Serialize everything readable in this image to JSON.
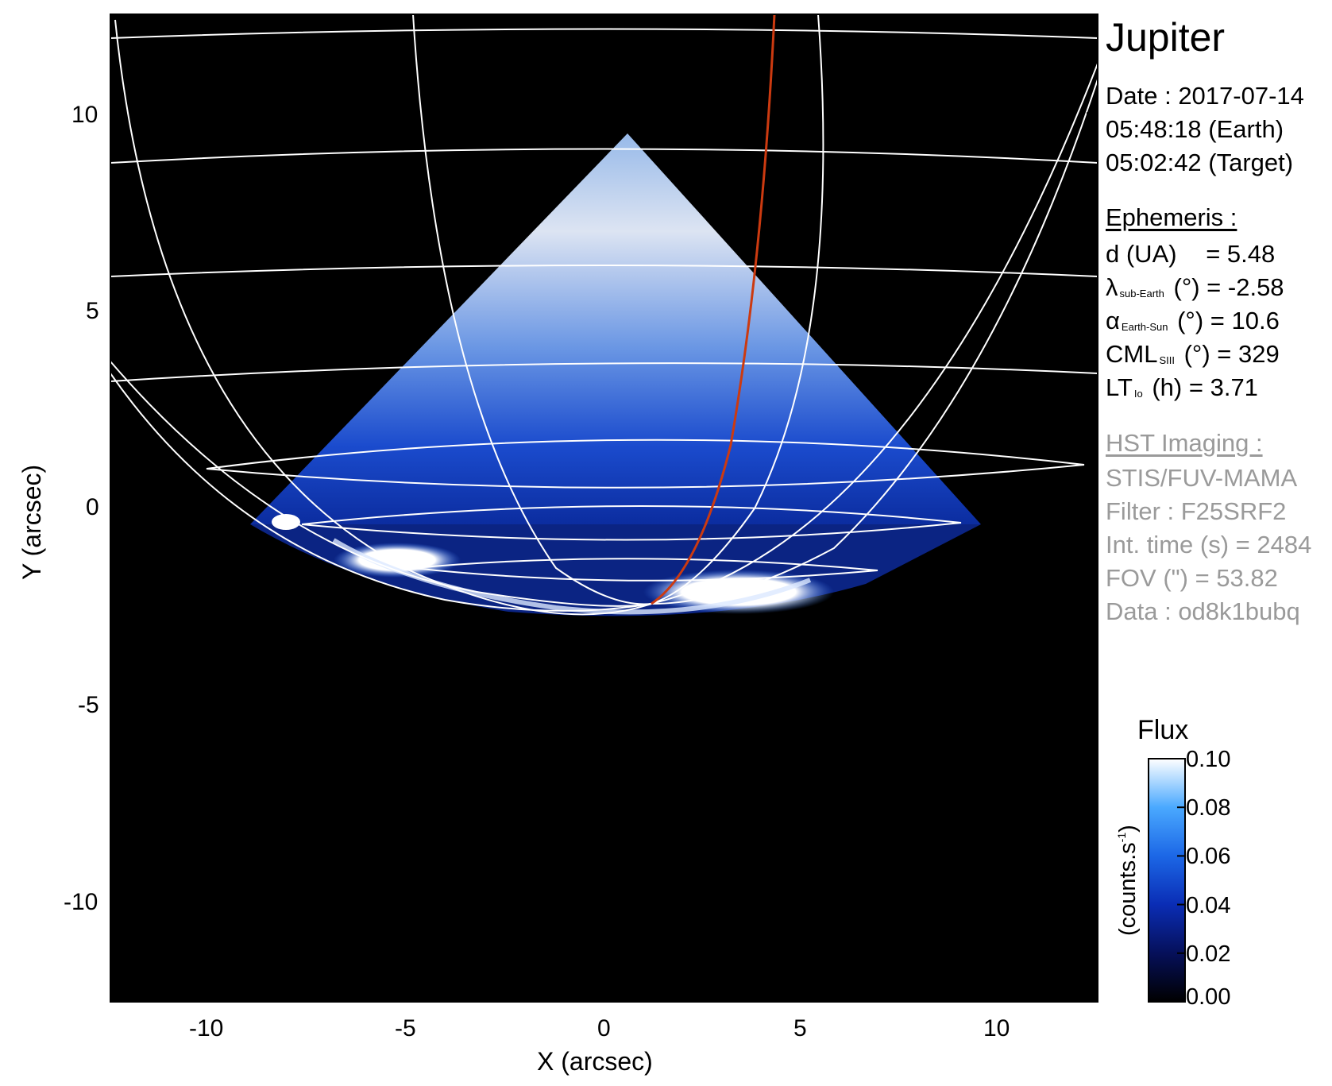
{
  "header": {
    "target": "Jupiter"
  },
  "observation": {
    "date_label": "Date : 2017-07-14",
    "earth_time": "05:48:18 (Earth)",
    "target_time": "05:02:42 (Target)"
  },
  "ephemeris": {
    "heading": "Ephemeris :",
    "distance": {
      "label": "d (UA)",
      "value": "= 5.48"
    },
    "sub_earth_lon": {
      "symbol": "λ",
      "sub": "sub-Earth",
      "unit": "(°)",
      "value": "= -2.58"
    },
    "phase_angle": {
      "symbol": "α",
      "sub": "Earth-Sun",
      "unit": "(°)",
      "value": "= 10.6"
    },
    "cml": {
      "symbol": "CML",
      "sub": "SIII",
      "unit": "(°)",
      "value": "= 329"
    },
    "lt": {
      "symbol": "LT",
      "sub": "Io",
      "unit": "(h)",
      "value": "= 3.71"
    }
  },
  "instrument": {
    "heading": "HST Imaging :",
    "detector": "STIS/FUV-MAMA",
    "filter": "Filter : F25SRF2",
    "int_time": "Int. time (s) = 2484",
    "fov": "FOV (\") = 53.82",
    "data_id": "Data : od8k1bubq"
  },
  "axes": {
    "xlabel": "X (arcsec)",
    "ylabel": "Y (arcsec)",
    "xticks": [
      "-10",
      "-5",
      "0",
      "5",
      "10"
    ],
    "yticks": [
      "10",
      "5",
      "0",
      "-5",
      "-10"
    ],
    "xlim": [
      -12.5,
      12.5
    ],
    "ylim": [
      -12.5,
      12.5
    ]
  },
  "colorbar": {
    "title": "Flux",
    "unit": "(counts.s",
    "unit_sup": "-1",
    "unit_close": ")",
    "ticks": [
      "0.10",
      "0.08",
      "0.06",
      "0.04",
      "0.02",
      "0.00"
    ],
    "range": [
      0.0,
      0.1
    ]
  },
  "colors": {
    "background": "#000000",
    "grid": "#ffffff",
    "footprint": "#cc3a10",
    "emission_low": "#0a1a7a",
    "emission_high": "#ffffff",
    "instrument_text": "#9a9a9a"
  }
}
